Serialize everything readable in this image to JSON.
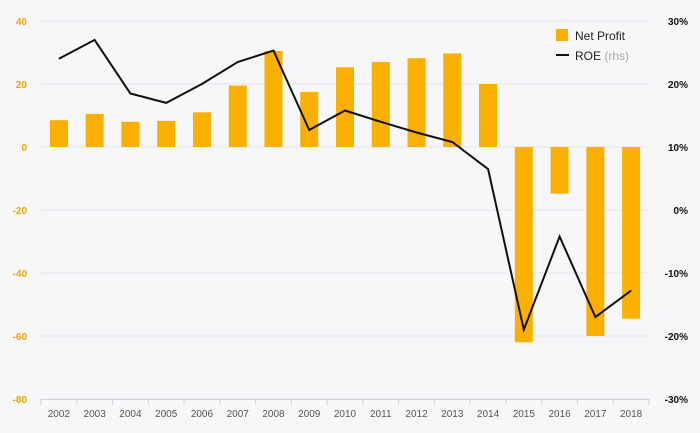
{
  "chart_data": {
    "type": "bar+line",
    "categories": [
      "2002",
      "2003",
      "2004",
      "2005",
      "2006",
      "2007",
      "2008",
      "2009",
      "2010",
      "2011",
      "2012",
      "2013",
      "2014",
      "2015",
      "2016",
      "2017",
      "2018"
    ],
    "series": [
      {
        "name": "Net Profit",
        "type": "bar",
        "axis": "left",
        "values": [
          8.5,
          10.5,
          8,
          8.3,
          11,
          19.5,
          30.5,
          17.5,
          25.3,
          27,
          28.2,
          29.7,
          20,
          -62,
          -14.8,
          -60,
          -54.5
        ]
      },
      {
        "name": "ROE",
        "name_suffix": "(rhs)",
        "type": "line",
        "axis": "right",
        "values": [
          24,
          27,
          18.5,
          17,
          20,
          23.5,
          25.3,
          12.7,
          15.8,
          14,
          12.3,
          10.8,
          6.5,
          -19,
          -4.2,
          -17,
          -12.8
        ]
      }
    ],
    "yaxis_left": {
      "min": -80,
      "max": 40,
      "step": 20,
      "ticks": [
        "40",
        "20",
        "0",
        "-20",
        "-40",
        "-60",
        "-80"
      ]
    },
    "yaxis_right": {
      "min": -30,
      "max": 30,
      "step": 10,
      "ticks": [
        "30%",
        "20%",
        "10%",
        "0%",
        "-10%",
        "-20%",
        "-30%"
      ]
    },
    "grid": true,
    "legend_position": "top-right",
    "colors": {
      "bar": "#f9b000",
      "line": "#111111",
      "left_tick": "#f0a500",
      "right_tick": "#111111",
      "grid": "#e6e6ea"
    },
    "title": "",
    "xlabel": "",
    "ylabel": ""
  }
}
